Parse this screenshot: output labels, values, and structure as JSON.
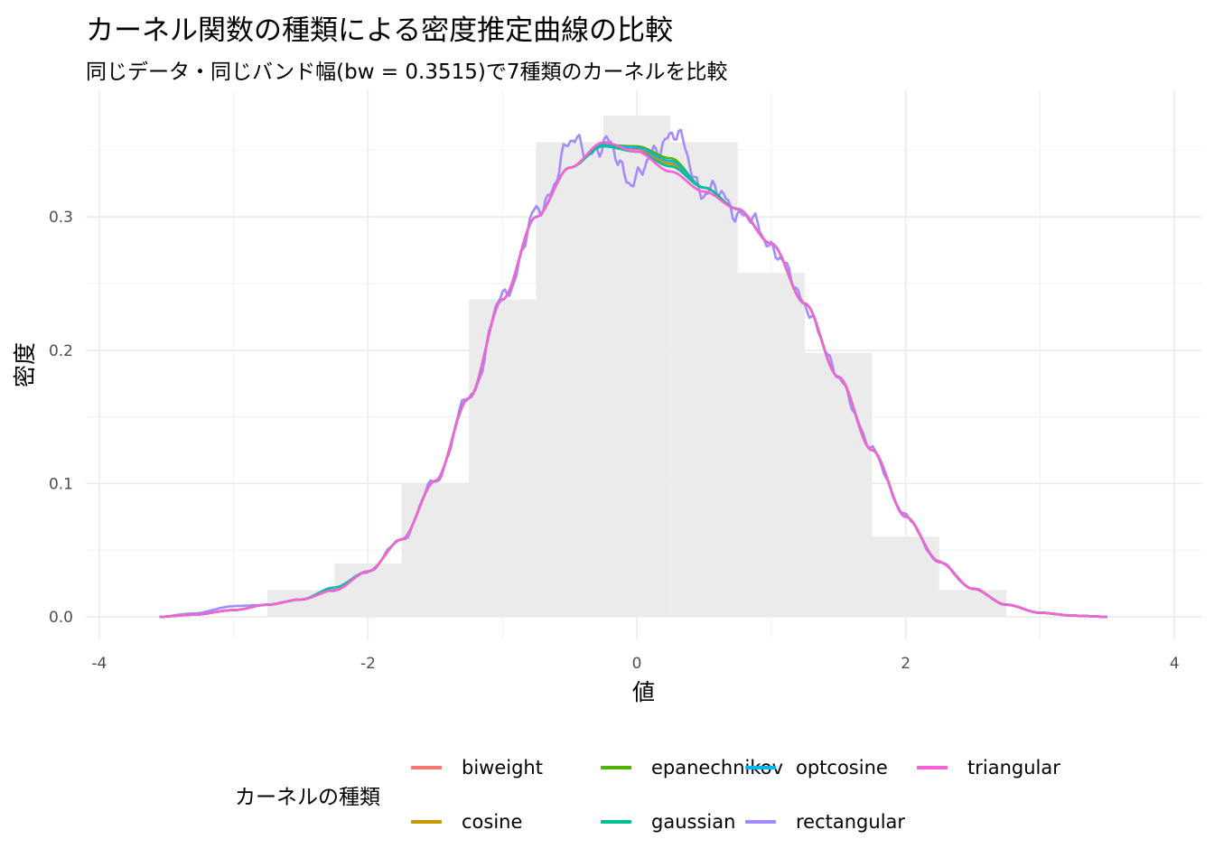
{
  "chart_data": {
    "type": "line",
    "title": "カーネル関数の種類による密度推定曲線の比較",
    "subtitle": "同じデータ・同じバンド幅(bw = 0.3515)で7種類のカーネルを比較",
    "xlabel": "値",
    "ylabel": "密度",
    "xlim": [
      -4.1,
      4.2
    ],
    "ylim": [
      -0.017,
      0.395
    ],
    "x_ticks": [
      -4,
      -2,
      0,
      2,
      4
    ],
    "x_tick_labels": [
      "-4",
      "-2",
      "0",
      "2",
      "4"
    ],
    "y_ticks": [
      0.0,
      0.1,
      0.2,
      0.3
    ],
    "y_tick_labels": [
      "0.0",
      "0.1",
      "0.2",
      "0.3"
    ],
    "grid": true,
    "legend_title": "カーネルの種類",
    "legend_position": "bottom",
    "histogram": {
      "color": "#ebebeb",
      "bins": [
        {
          "x0": -2.75,
          "x1": -2.25,
          "density": 0.02
        },
        {
          "x0": -2.25,
          "x1": -1.75,
          "density": 0.04
        },
        {
          "x0": -1.75,
          "x1": -1.25,
          "density": 0.1
        },
        {
          "x0": -1.25,
          "x1": -0.75,
          "density": 0.238
        },
        {
          "x0": -0.75,
          "x1": -0.25,
          "density": 0.356
        },
        {
          "x0": -0.25,
          "x1": 0.25,
          "density": 0.376
        },
        {
          "x0": 0.25,
          "x1": 0.75,
          "density": 0.356
        },
        {
          "x0": 0.75,
          "x1": 1.25,
          "density": 0.258
        },
        {
          "x0": 1.25,
          "x1": 1.75,
          "density": 0.198
        },
        {
          "x0": 1.75,
          "x1": 2.25,
          "density": 0.06
        },
        {
          "x0": 2.25,
          "x1": 2.75,
          "density": 0.02
        }
      ]
    },
    "base_curve": {
      "x": [
        -3.55,
        -3.3,
        -3.0,
        -2.75,
        -2.5,
        -2.25,
        -2.0,
        -1.75,
        -1.5,
        -1.25,
        -1.0,
        -0.75,
        -0.5,
        -0.25,
        0.0,
        0.25,
        0.5,
        0.75,
        1.0,
        1.25,
        1.5,
        1.75,
        2.0,
        2.25,
        2.5,
        2.75,
        3.0,
        3.25,
        3.5
      ],
      "y": [
        0.0,
        0.0015,
        0.005,
        0.009,
        0.013,
        0.02,
        0.034,
        0.058,
        0.102,
        0.164,
        0.238,
        0.3,
        0.337,
        0.352,
        0.349,
        0.338,
        0.322,
        0.306,
        0.28,
        0.235,
        0.18,
        0.125,
        0.075,
        0.041,
        0.021,
        0.009,
        0.003,
        0.0008,
        0.0
      ]
    },
    "series": [
      {
        "name": "biweight",
        "color": "#F8766D",
        "shape": [
          0,
          0,
          0,
          0,
          0,
          0,
          0,
          0,
          0,
          0,
          0,
          0,
          0,
          0.003,
          0.002,
          0,
          0,
          0,
          0,
          0,
          0,
          0,
          0,
          0,
          0,
          0,
          0,
          0,
          0
        ]
      },
      {
        "name": "cosine",
        "color": "#C49A00",
        "shape": [
          0,
          0,
          0,
          0,
          0,
          0,
          0,
          0,
          0,
          0,
          0,
          0,
          0,
          0.002,
          0.003,
          0.002,
          0,
          0,
          0,
          0,
          0,
          0,
          0,
          0,
          0,
          0,
          0,
          0,
          0
        ]
      },
      {
        "name": "epanechnikov",
        "color": "#53B400",
        "shape": [
          0,
          0,
          0,
          0,
          0,
          0,
          0,
          0,
          0,
          0,
          0,
          0,
          0,
          0.002,
          0.004,
          0.006,
          0,
          0,
          0,
          0,
          0,
          0,
          0,
          0,
          0,
          0,
          0,
          0,
          0
        ]
      },
      {
        "name": "gaussian",
        "color": "#00C094",
        "shape": [
          0,
          0,
          0,
          0,
          0,
          0.002,
          0,
          0,
          0,
          0,
          0,
          0,
          0,
          0.001,
          0,
          0,
          0,
          0,
          0,
          0,
          0,
          0,
          0,
          0,
          0,
          0,
          0,
          0,
          0
        ]
      },
      {
        "name": "optcosine",
        "color": "#00B6EB",
        "shape": [
          0,
          0,
          0,
          0,
          0,
          0,
          0,
          0,
          0,
          0,
          0,
          0,
          0,
          0.002,
          0.003,
          0.004,
          0,
          0,
          0,
          0,
          0,
          0,
          0,
          0,
          0,
          0,
          0,
          0,
          0
        ]
      },
      {
        "name": "rectangular",
        "color": "#A58AFF",
        "rough": true,
        "shape": [
          0,
          0.001,
          0.003,
          0,
          0,
          0,
          0,
          0,
          0,
          0,
          0,
          0,
          0.016,
          0,
          -0.02,
          0.026,
          0,
          0,
          0,
          0,
          0,
          0,
          0,
          0,
          0,
          0,
          0,
          0,
          0
        ]
      },
      {
        "name": "triangular",
        "color": "#FB61D7",
        "shape": [
          0,
          0,
          0,
          0,
          0,
          0,
          0,
          0,
          0,
          0,
          0,
          0,
          0,
          0.004,
          0,
          -0.004,
          -0.003,
          0,
          0,
          0,
          0,
          0,
          0,
          0,
          0,
          0,
          0,
          0,
          0
        ]
      }
    ]
  }
}
